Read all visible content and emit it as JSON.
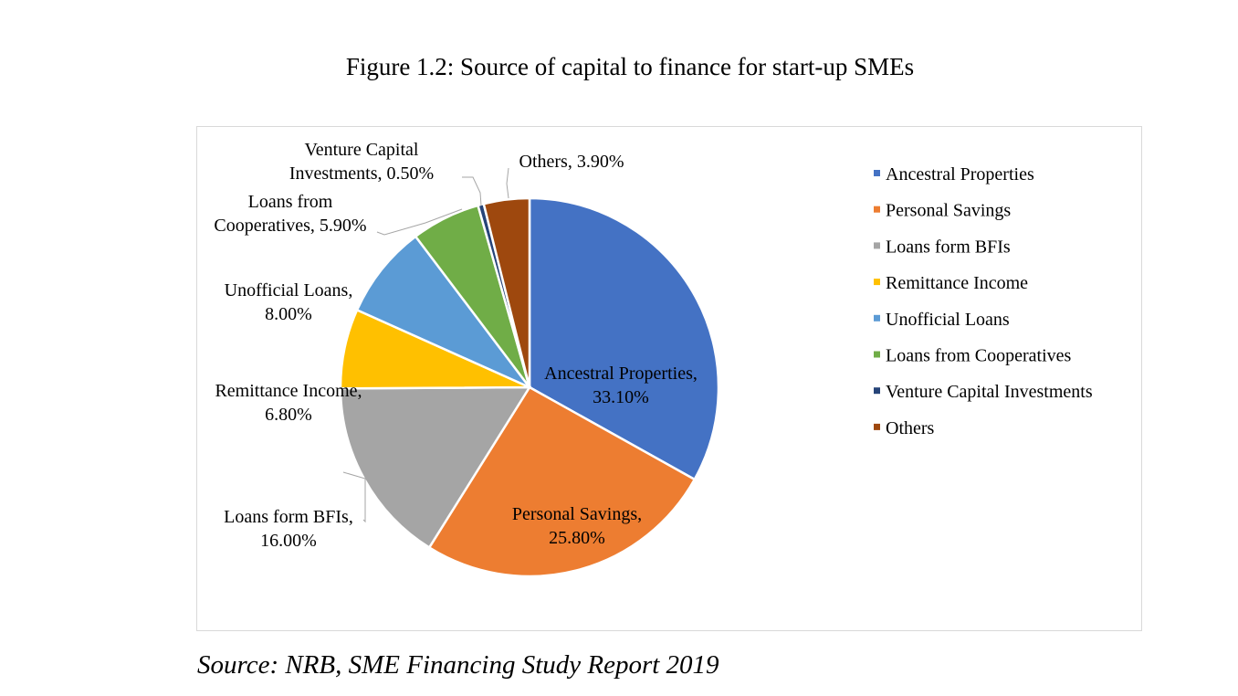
{
  "figure_title": "Figure 1.2: Source of capital to finance for start-up SMEs",
  "source_note": "Source: NRB, SME Financing Study Report 2019",
  "chart_data": {
    "type": "pie",
    "title": "",
    "legend_position": "right",
    "slices": [
      {
        "name": "Ancestral Properties",
        "value": 33.1,
        "color": "#4472C4",
        "label_lines": [
          "Ancestral Properties,",
          "33.10%"
        ]
      },
      {
        "name": "Personal Savings",
        "value": 25.8,
        "color": "#ED7D31",
        "label_lines": [
          "Personal Savings,",
          "25.80%"
        ]
      },
      {
        "name": "Loans form BFIs",
        "value": 16.0,
        "color": "#A5A5A5",
        "label_lines": [
          "Loans form BFIs,",
          "16.00%"
        ]
      },
      {
        "name": "Remittance Income",
        "value": 6.8,
        "color": "#FFC000",
        "label_lines": [
          "Remittance Income,",
          "6.80%"
        ]
      },
      {
        "name": "Unofficial Loans",
        "value": 8.0,
        "color": "#5B9BD5",
        "label_lines": [
          "Unofficial Loans,",
          "8.00%"
        ]
      },
      {
        "name": "Loans from Cooperatives",
        "value": 5.9,
        "color": "#70AD47",
        "label_lines": [
          "Loans from",
          "Cooperatives, 5.90%"
        ]
      },
      {
        "name": "Venture Capital Investments",
        "value": 0.5,
        "color": "#264478",
        "label_lines": [
          "Venture Capital",
          "Investments, 0.50%"
        ]
      },
      {
        "name": "Others",
        "value": 3.9,
        "color": "#9E480E",
        "label_lines": [
          "Others, 3.90%"
        ]
      }
    ]
  }
}
